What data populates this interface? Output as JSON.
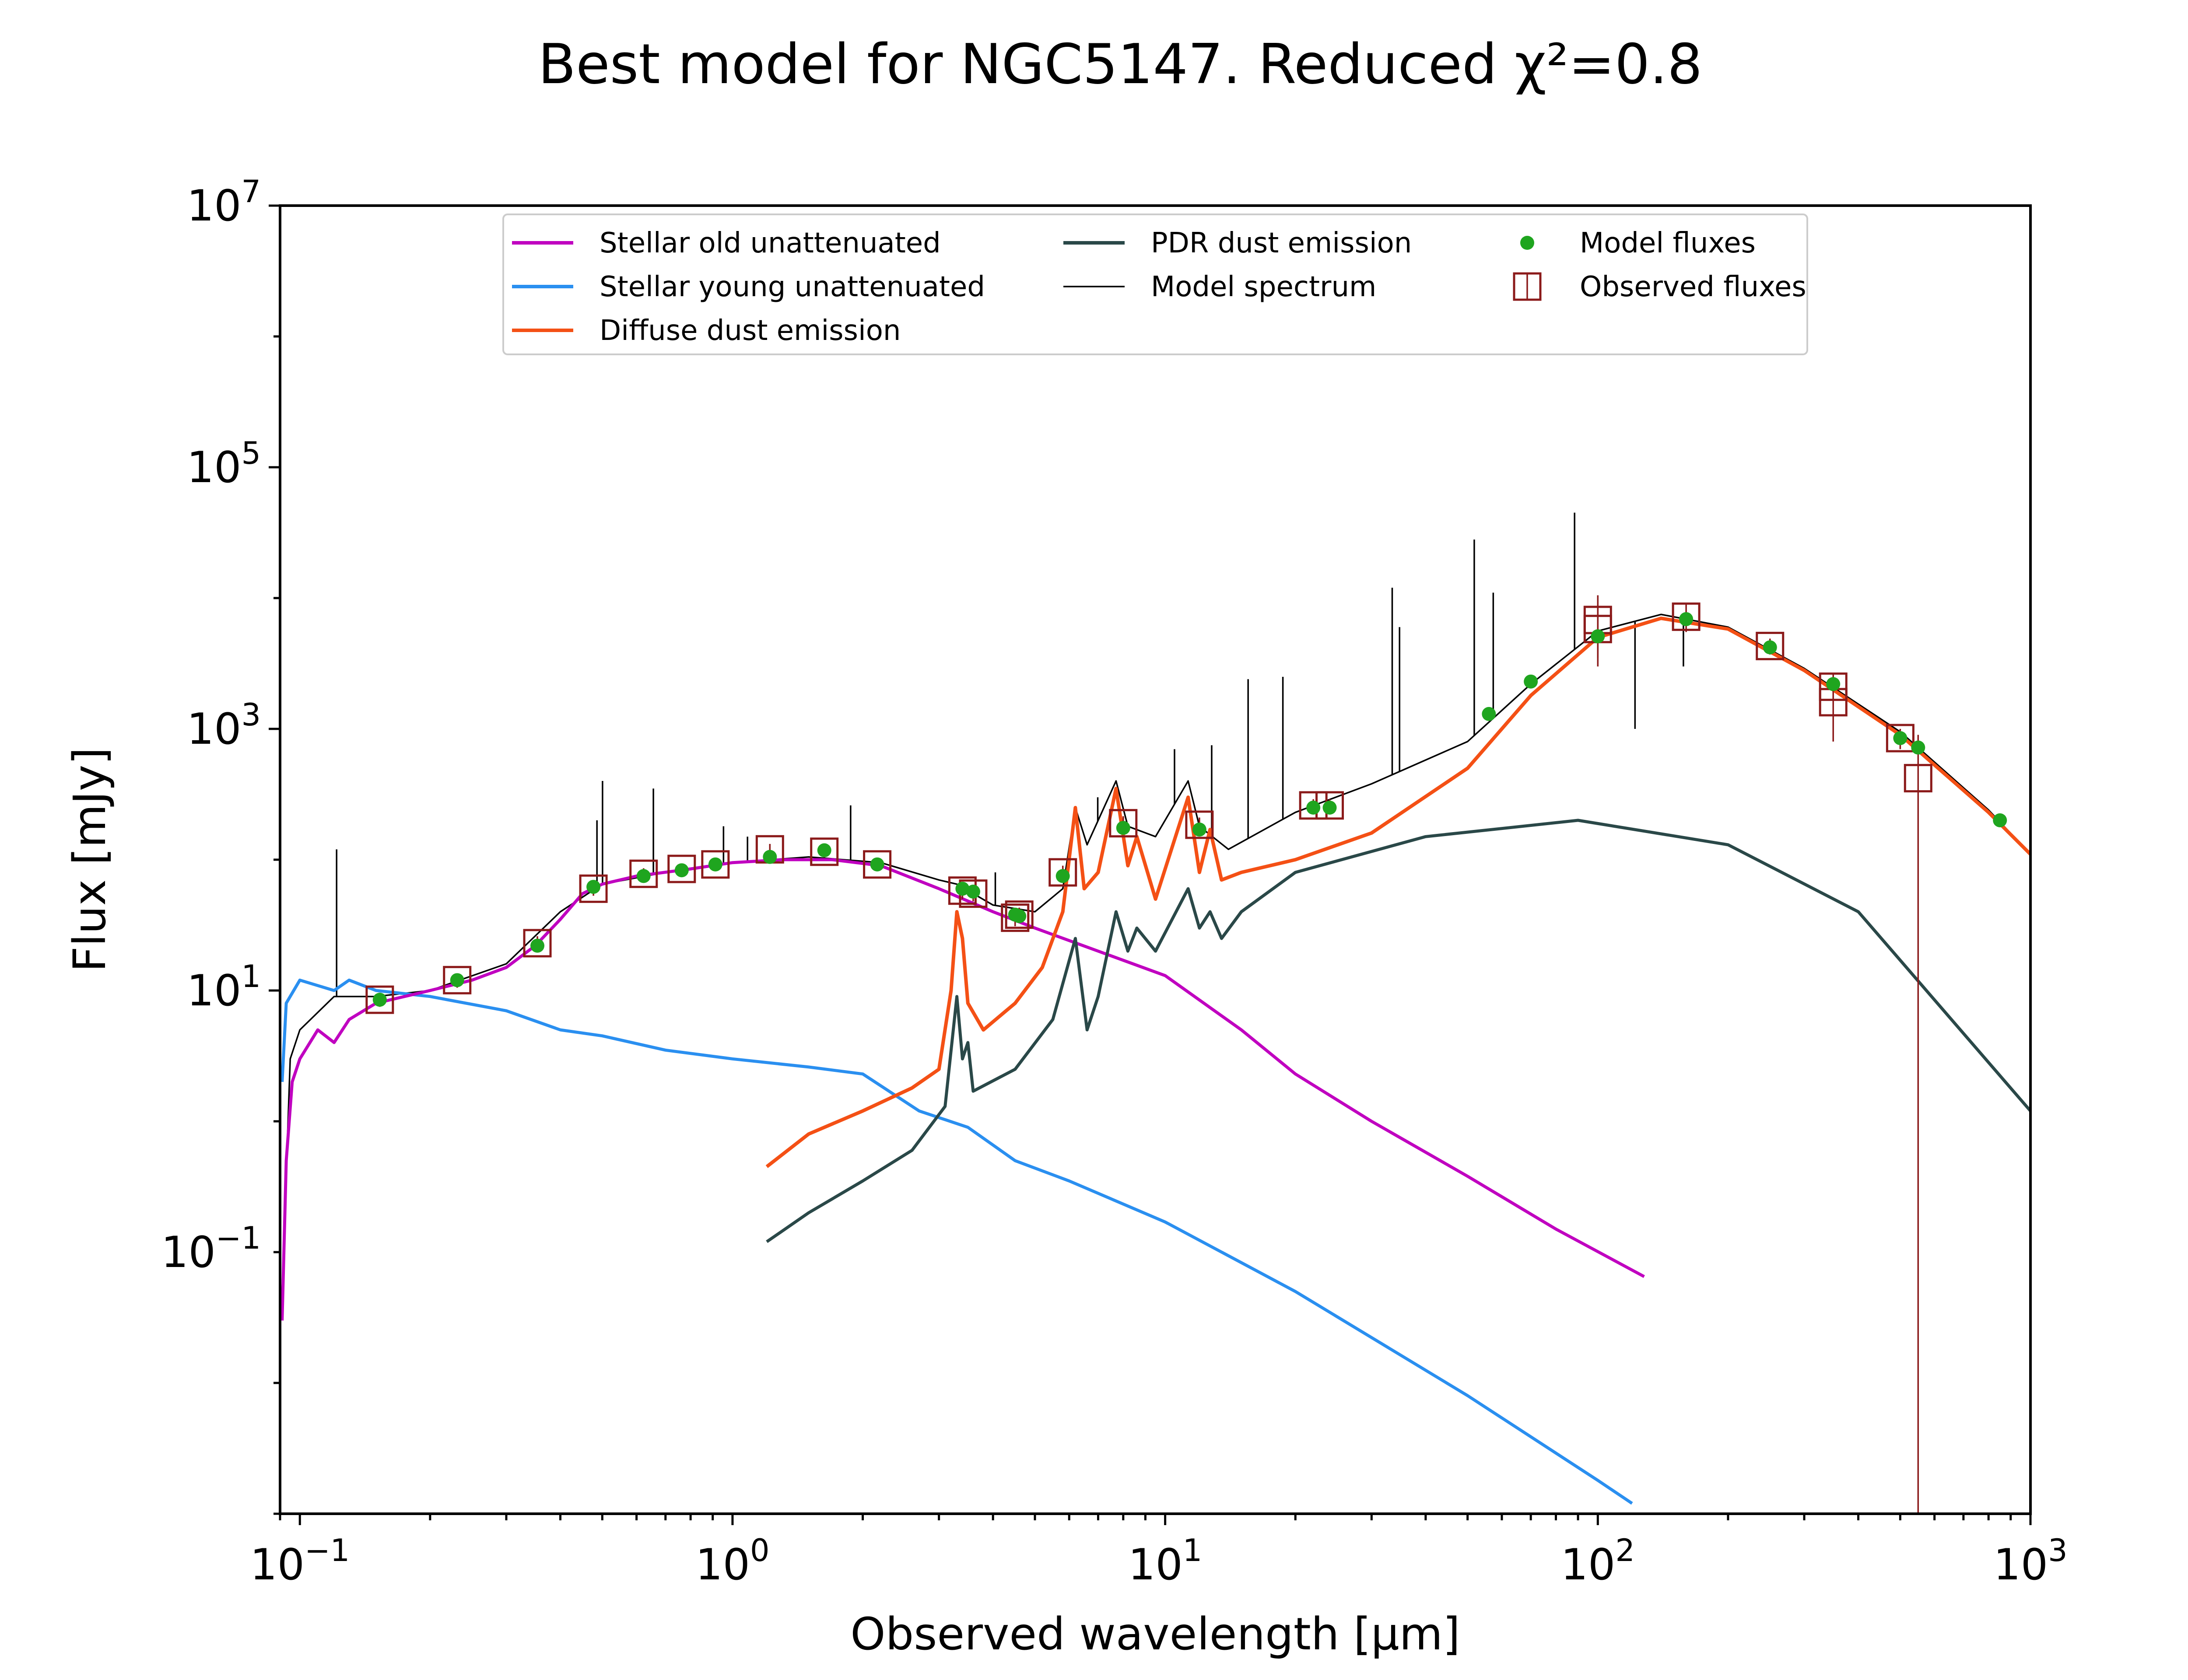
{
  "chart_data": {
    "type": "line",
    "title": "Best model for NGC5147. Reduced χ²=0.8",
    "xlabel": "Observed wavelength [μm]",
    "ylabel": "Flux [mJy]",
    "xscale": "log",
    "yscale": "log",
    "xlim": [
      0.09,
      1000
    ],
    "ylim": [
      0.001,
      10000000
    ],
    "x_tick_labels": [
      {
        "base": "10",
        "exp": "−1",
        "value": 0.1
      },
      {
        "base": "10",
        "exp": "0",
        "value": 1
      },
      {
        "base": "10",
        "exp": "1",
        "value": 10
      },
      {
        "base": "10",
        "exp": "2",
        "value": 100
      },
      {
        "base": "10",
        "exp": "3",
        "value": 1000
      }
    ],
    "y_tick_labels": [
      {
        "base": "10",
        "exp": "−1",
        "value": 0.1
      },
      {
        "base": "10",
        "exp": "1",
        "value": 10
      },
      {
        "base": "10",
        "exp": "3",
        "value": 1000
      },
      {
        "base": "10",
        "exp": "5",
        "value": 100000
      },
      {
        "base": "10",
        "exp": "7",
        "value": 10000000
      }
    ],
    "legend_position": "top-center",
    "grid": false,
    "series": [
      {
        "name": "Stellar old unattenuated",
        "color": "#c000c0",
        "kind": "line",
        "points": [
          [
            0.091,
            0.03
          ],
          [
            0.093,
            0.5
          ],
          [
            0.096,
            2
          ],
          [
            0.1,
            3
          ],
          [
            0.11,
            5
          ],
          [
            0.12,
            4
          ],
          [
            0.13,
            6
          ],
          [
            0.15,
            8
          ],
          [
            0.2,
            10
          ],
          [
            0.25,
            12
          ],
          [
            0.3,
            15
          ],
          [
            0.35,
            22
          ],
          [
            0.4,
            35
          ],
          [
            0.45,
            55
          ],
          [
            0.5,
            65
          ],
          [
            0.6,
            75
          ],
          [
            0.8,
            85
          ],
          [
            1.0,
            95
          ],
          [
            1.3,
            100
          ],
          [
            1.7,
            100
          ],
          [
            2.2,
            90
          ],
          [
            3.0,
            60
          ],
          [
            4.0,
            40
          ],
          [
            5.0,
            30
          ],
          [
            7.0,
            20
          ],
          [
            10.0,
            13
          ],
          [
            15.0,
            5
          ],
          [
            20.0,
            2.3
          ],
          [
            30.0,
            1.0
          ],
          [
            50.0,
            0.38
          ],
          [
            80.0,
            0.15
          ],
          [
            128.0,
            0.065
          ]
        ]
      },
      {
        "name": "Stellar young unattenuated",
        "color": "#2a8ff0",
        "kind": "line",
        "points": [
          [
            0.091,
            2
          ],
          [
            0.093,
            8
          ],
          [
            0.1,
            12
          ],
          [
            0.12,
            10
          ],
          [
            0.13,
            12
          ],
          [
            0.15,
            10
          ],
          [
            0.2,
            9
          ],
          [
            0.3,
            7
          ],
          [
            0.4,
            5
          ],
          [
            0.5,
            4.5
          ],
          [
            0.7,
            3.5
          ],
          [
            1.0,
            3
          ],
          [
            1.5,
            2.6
          ],
          [
            2.0,
            2.3
          ],
          [
            2.7,
            1.2
          ],
          [
            3.5,
            0.9
          ],
          [
            4.5,
            0.5
          ],
          [
            6.0,
            0.35
          ],
          [
            10.0,
            0.17
          ],
          [
            20.0,
            0.05
          ],
          [
            50.0,
            0.008
          ],
          [
            100.0,
            0.0018
          ],
          [
            120.0,
            0.0012
          ]
        ]
      },
      {
        "name": "Diffuse dust emission",
        "color": "#f45015",
        "kind": "line",
        "points": [
          [
            1.2,
            0.45
          ],
          [
            1.5,
            0.8
          ],
          [
            2.0,
            1.2
          ],
          [
            2.6,
            1.8
          ],
          [
            3.0,
            2.5
          ],
          [
            3.2,
            10
          ],
          [
            3.3,
            40
          ],
          [
            3.4,
            25
          ],
          [
            3.5,
            8
          ],
          [
            3.8,
            5
          ],
          [
            4.5,
            8
          ],
          [
            5.2,
            15
          ],
          [
            5.8,
            40
          ],
          [
            6.2,
            250
          ],
          [
            6.5,
            60
          ],
          [
            7.0,
            80
          ],
          [
            7.7,
            350
          ],
          [
            8.2,
            90
          ],
          [
            8.6,
            150
          ],
          [
            9.5,
            50
          ],
          [
            11.3,
            300
          ],
          [
            12.0,
            80
          ],
          [
            12.7,
            170
          ],
          [
            13.5,
            70
          ],
          [
            15.0,
            80
          ],
          [
            20.0,
            100
          ],
          [
            30.0,
            160
          ],
          [
            50.0,
            500
          ],
          [
            70.0,
            1800
          ],
          [
            100.0,
            5000
          ],
          [
            140.0,
            7000
          ],
          [
            200.0,
            5800
          ],
          [
            300.0,
            2800
          ],
          [
            500.0,
            900
          ],
          [
            800.0,
            230
          ],
          [
            1000.0,
            110
          ]
        ]
      },
      {
        "name": "PDR dust emission",
        "color": "#2a4848",
        "kind": "line",
        "points": [
          [
            1.2,
            0.12
          ],
          [
            1.5,
            0.2
          ],
          [
            2.0,
            0.35
          ],
          [
            2.6,
            0.6
          ],
          [
            3.1,
            1.3
          ],
          [
            3.3,
            9
          ],
          [
            3.4,
            3
          ],
          [
            3.5,
            4
          ],
          [
            3.6,
            1.7
          ],
          [
            4.5,
            2.5
          ],
          [
            5.5,
            6
          ],
          [
            6.2,
            25
          ],
          [
            6.6,
            5
          ],
          [
            7.0,
            9
          ],
          [
            7.7,
            40
          ],
          [
            8.2,
            20
          ],
          [
            8.6,
            30
          ],
          [
            9.5,
            20
          ],
          [
            11.3,
            60
          ],
          [
            12.0,
            30
          ],
          [
            12.7,
            40
          ],
          [
            13.5,
            25
          ],
          [
            15.0,
            40
          ],
          [
            20.0,
            80
          ],
          [
            40.0,
            150
          ],
          [
            90.0,
            200
          ],
          [
            200.0,
            130
          ],
          [
            400.0,
            40
          ],
          [
            1000.0,
            1.2
          ]
        ]
      },
      {
        "name": "Model spectrum",
        "color": "#000000",
        "kind": "line",
        "points": [
          [
            0.091,
            0.05
          ],
          [
            0.095,
            3
          ],
          [
            0.1,
            5
          ],
          [
            0.12,
            9
          ],
          [
            0.15,
            9
          ],
          [
            0.2,
            10
          ],
          [
            0.3,
            16
          ],
          [
            0.4,
            40
          ],
          [
            0.5,
            65
          ],
          [
            0.7,
            80
          ],
          [
            1.0,
            95
          ],
          [
            1.5,
            105
          ],
          [
            2.2,
            95
          ],
          [
            3.0,
            70
          ],
          [
            3.3,
            65
          ],
          [
            4.0,
            45
          ],
          [
            5.0,
            40
          ],
          [
            5.8,
            60
          ],
          [
            6.2,
            250
          ],
          [
            6.6,
            130
          ],
          [
            7.7,
            400
          ],
          [
            8.2,
            180
          ],
          [
            9.5,
            150
          ],
          [
            11.3,
            400
          ],
          [
            12.0,
            180
          ],
          [
            14.0,
            120
          ],
          [
            20.0,
            230
          ],
          [
            30.0,
            380
          ],
          [
            50.0,
            800
          ],
          [
            70.0,
            2200
          ],
          [
            100.0,
            5600
          ],
          [
            140.0,
            7500
          ],
          [
            200.0,
            6000
          ],
          [
            300.0,
            2900
          ],
          [
            500.0,
            950
          ],
          [
            800.0,
            240
          ],
          [
            1000.0,
            110
          ]
        ]
      },
      {
        "name": "Emission lines",
        "color": "#000000",
        "kind": "spikes",
        "points": [
          [
            0.1216,
            120
          ],
          [
            0.4861,
            200
          ],
          [
            0.5007,
            400
          ],
          [
            0.6563,
            350
          ],
          [
            0.9532,
            180
          ],
          [
            1.083,
            150
          ],
          [
            1.875,
            260
          ],
          [
            4.05,
            80
          ],
          [
            6.985,
            300
          ],
          [
            10.51,
            700
          ],
          [
            12.81,
            750
          ],
          [
            15.55,
            2400
          ],
          [
            18.71,
            2500
          ],
          [
            33.48,
            12000
          ],
          [
            34.81,
            6000
          ],
          [
            51.81,
            28000
          ],
          [
            57.32,
            11000
          ],
          [
            88.36,
            45000
          ],
          [
            121.9,
            1000
          ],
          [
            157.7,
            3000
          ]
        ]
      },
      {
        "name": "Model fluxes",
        "color": "#1fa51f",
        "kind": "points",
        "points": [
          [
            0.153,
            8.5
          ],
          [
            0.231,
            12
          ],
          [
            0.354,
            22
          ],
          [
            0.477,
            62
          ],
          [
            0.623,
            75
          ],
          [
            0.763,
            83
          ],
          [
            0.913,
            92
          ],
          [
            1.22,
            105
          ],
          [
            1.63,
            118
          ],
          [
            2.16,
            92
          ],
          [
            3.4,
            60
          ],
          [
            3.6,
            57
          ],
          [
            4.5,
            38
          ],
          [
            4.6,
            37
          ],
          [
            5.8,
            75
          ],
          [
            8.0,
            175
          ],
          [
            12.0,
            170
          ],
          [
            22.0,
            250
          ],
          [
            24.0,
            250
          ],
          [
            56.0,
            1300
          ],
          [
            70.0,
            2300
          ],
          [
            100.0,
            5100
          ],
          [
            160.0,
            6900
          ],
          [
            250.0,
            4200
          ],
          [
            350.0,
            2200
          ],
          [
            500.0,
            850
          ],
          [
            550.0,
            720
          ],
          [
            850.0,
            200
          ]
        ]
      },
      {
        "name": "Observed fluxes",
        "color": "#8b1a1a",
        "kind": "errorbars",
        "points": [
          {
            "x": 0.153,
            "y": 8.5,
            "lo": 7.5,
            "hi": 9.6
          },
          {
            "x": 0.231,
            "y": 12,
            "lo": 10.5,
            "hi": 13.5
          },
          {
            "x": 0.354,
            "y": 23,
            "lo": 20,
            "hi": 26
          },
          {
            "x": 0.477,
            "y": 60,
            "lo": 53,
            "hi": 67
          },
          {
            "x": 0.623,
            "y": 78,
            "lo": 70,
            "hi": 86
          },
          {
            "x": 0.763,
            "y": 85,
            "lo": 77,
            "hi": 93
          },
          {
            "x": 0.913,
            "y": 92,
            "lo": 83,
            "hi": 101
          },
          {
            "x": 1.22,
            "y": 120,
            "lo": 108,
            "hi": 132
          },
          {
            "x": 1.63,
            "y": 115,
            "lo": 104,
            "hi": 126
          },
          {
            "x": 2.16,
            "y": 92,
            "lo": 82,
            "hi": 102
          },
          {
            "x": 3.4,
            "y": 58,
            "lo": 50,
            "hi": 66
          },
          {
            "x": 3.6,
            "y": 55,
            "lo": 48,
            "hi": 62
          },
          {
            "x": 4.5,
            "y": 36,
            "lo": 31,
            "hi": 41
          },
          {
            "x": 4.6,
            "y": 38,
            "lo": 33,
            "hi": 43
          },
          {
            "x": 5.8,
            "y": 80,
            "lo": 70,
            "hi": 90
          },
          {
            "x": 8.0,
            "y": 190,
            "lo": 165,
            "hi": 215
          },
          {
            "x": 12.0,
            "y": 185,
            "lo": 160,
            "hi": 210
          },
          {
            "x": 22.0,
            "y": 260,
            "lo": 230,
            "hi": 290
          },
          {
            "x": 24.0,
            "y": 260,
            "lo": 230,
            "hi": 290
          },
          {
            "x": 100.0,
            "y": 6800,
            "lo": 3000,
            "hi": 10500
          },
          {
            "x": 100.0,
            "y": 5800,
            "lo": 3500,
            "hi": 8500
          },
          {
            "x": 160.0,
            "y": 7200,
            "lo": 5500,
            "hi": 9000
          },
          {
            "x": 250.0,
            "y": 4300,
            "lo": 3700,
            "hi": 4900
          },
          {
            "x": 350.0,
            "y": 2100,
            "lo": 1700,
            "hi": 2600
          },
          {
            "x": 350.0,
            "y": 1600,
            "lo": 800,
            "hi": 2400
          },
          {
            "x": 500.0,
            "y": 850,
            "lo": 700,
            "hi": 1000
          },
          {
            "x": 550.0,
            "y": 420,
            "lo": 0.001,
            "hi": 900
          }
        ]
      }
    ],
    "legend": [
      {
        "label": "Stellar old unattenuated",
        "kind": "line",
        "color": "#c000c0"
      },
      {
        "label": "Stellar young unattenuated",
        "kind": "line",
        "color": "#2a8ff0"
      },
      {
        "label": "Diffuse dust emission",
        "kind": "line",
        "color": "#f45015"
      },
      {
        "label": "PDR dust emission",
        "kind": "line",
        "color": "#2a4848"
      },
      {
        "label": "Model spectrum",
        "kind": "thinline",
        "color": "#000000"
      },
      {
        "label": "Model fluxes",
        "kind": "dot",
        "color": "#1fa51f"
      },
      {
        "label": "Observed fluxes",
        "kind": "square",
        "color": "#8b1a1a"
      }
    ]
  }
}
